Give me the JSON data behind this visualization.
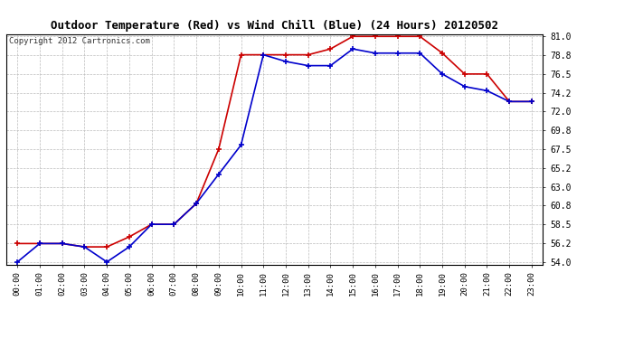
{
  "title": "Outdoor Temperature (Red) vs Wind Chill (Blue) (24 Hours) 20120502",
  "copyright_text": "Copyright 2012 Cartronics.com",
  "x_labels": [
    "00:00",
    "01:00",
    "02:00",
    "03:00",
    "04:00",
    "05:00",
    "06:00",
    "07:00",
    "08:00",
    "09:00",
    "10:00",
    "11:00",
    "12:00",
    "13:00",
    "14:00",
    "15:00",
    "16:00",
    "17:00",
    "18:00",
    "19:00",
    "20:00",
    "21:00",
    "22:00",
    "23:00"
  ],
  "red_data": [
    56.2,
    56.2,
    56.2,
    55.8,
    55.8,
    57.0,
    58.5,
    58.5,
    61.0,
    67.5,
    78.8,
    78.8,
    78.8,
    78.8,
    79.5,
    81.0,
    81.0,
    81.0,
    81.0,
    79.0,
    76.5,
    76.5,
    73.2,
    73.2
  ],
  "blue_data": [
    54.0,
    56.2,
    56.2,
    55.8,
    54.0,
    55.8,
    58.5,
    58.5,
    61.0,
    64.5,
    68.0,
    78.8,
    78.0,
    77.5,
    77.5,
    79.5,
    79.0,
    79.0,
    79.0,
    76.5,
    75.0,
    74.5,
    73.2,
    73.2
  ],
  "ylim_min": 54.0,
  "ylim_max": 81.0,
  "yticks": [
    54.0,
    56.2,
    58.5,
    60.8,
    63.0,
    65.2,
    67.5,
    69.8,
    72.0,
    74.2,
    76.5,
    78.8,
    81.0
  ],
  "red_color": "#cc0000",
  "blue_color": "#0000cc",
  "bg_color": "#ffffff",
  "grid_color": "#bbbbbb",
  "title_fontsize": 9,
  "copyright_fontsize": 6.5,
  "tick_fontsize": 6.5,
  "ytick_fontsize": 7
}
